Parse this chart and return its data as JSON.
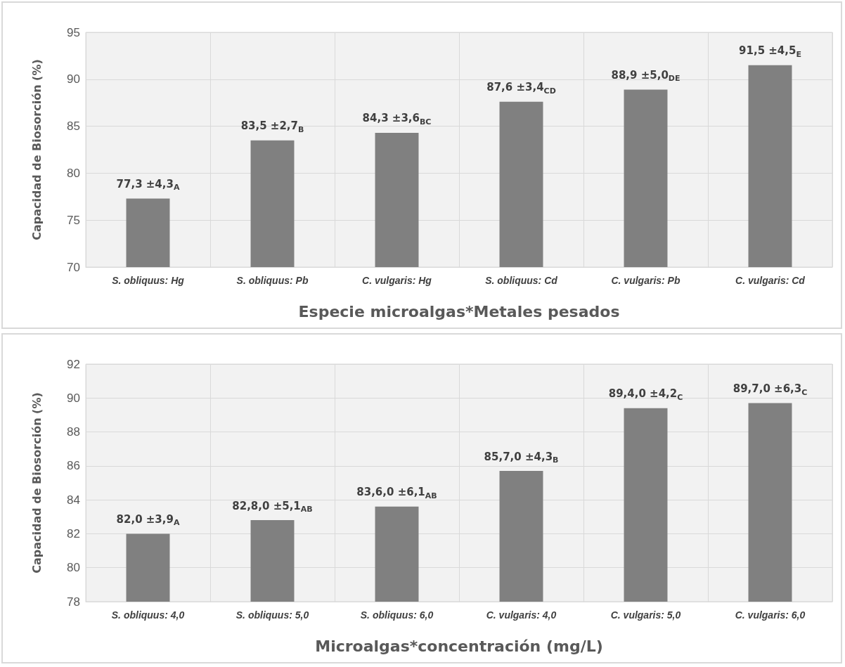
{
  "chart_data": [
    {
      "type": "bar",
      "categories": [
        "S. obliquus: Hg",
        "S. obliquus: Pb",
        "C. vulgaris: Hg",
        "S. obliquus: Cd",
        "C. vulgaris: Pb",
        "C. vulgaris: Cd"
      ],
      "values": [
        77.3,
        83.5,
        84.3,
        87.6,
        88.9,
        91.5
      ],
      "value_labels": [
        "77,3 ±4,3$_{A}$",
        "83,5 ±2,7$_{B}$",
        "84,3 ±3,6$_{BC}$",
        "87,6 ±3,4$_{CD}$",
        "88,9 ±5,0$_{DE}$",
        "91,5 ±4,5$_{E}$"
      ],
      "color": "#808080",
      "ylim": [
        70,
        95
      ],
      "yticks": [
        70,
        75,
        80,
        85,
        90,
        95
      ],
      "grid": true,
      "xlabel": "Especie microalgas*Metales pesados",
      "ylabel": "Capacidad de Biosorción (%)"
    },
    {
      "type": "bar",
      "categories": [
        "S. obliquus: 4,0",
        "S. obliquus: 5,0",
        "S. obliquus: 6,0",
        "C. vulgaris: 4,0",
        "C. vulgaris: 5,0",
        "C. vulgaris: 6,0"
      ],
      "values": [
        82.0,
        82.8,
        83.6,
        85.7,
        89.4,
        89.7
      ],
      "value_labels": [
        "82,0 ±3,9$_{A}$",
        "82,8,0 ±5,1$_{AB}$",
        "83,6,0 ±6,1$_{AB}$",
        "85,7,0 ±4,3$_{B}$",
        "89,4,0 ±4,2$_{C}$",
        "89,7,0 ±6,3$_{C}$"
      ],
      "color": "#808080",
      "ylim": [
        78,
        92
      ],
      "yticks": [
        78,
        80,
        82,
        84,
        86,
        88,
        90,
        92
      ],
      "grid": true,
      "xlabel": "Microalgas*concentración (mg/L)",
      "ylabel": "Capacidad de Biosorción (%)"
    }
  ]
}
